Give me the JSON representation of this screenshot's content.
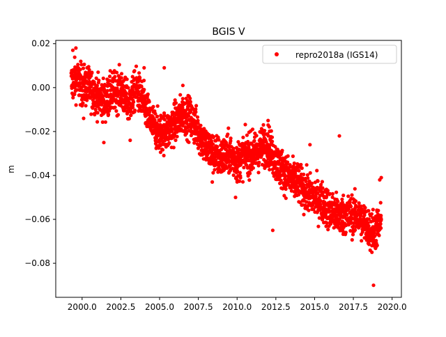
{
  "chart_data": {
    "type": "scatter",
    "title": "BGIS V",
    "xlabel": "",
    "ylabel": "m",
    "xlim": [
      1998.3,
      2020.6
    ],
    "ylim": [
      -0.0955,
      0.0215
    ],
    "x_ticks": [
      2000.0,
      2002.5,
      2005.0,
      2007.5,
      2010.0,
      2012.5,
      2015.0,
      2017.5,
      2020.0
    ],
    "x_tick_labels": [
      "2000.0",
      "2002.5",
      "2005.0",
      "2007.5",
      "2010.0",
      "2012.5",
      "2015.0",
      "2017.5",
      "2020.0"
    ],
    "y_ticks": [
      0.02,
      0.0,
      -0.02,
      -0.04,
      -0.06,
      -0.08
    ],
    "y_tick_labels": [
      "0.02",
      "0.00",
      "−0.02",
      "−0.04",
      "−0.06",
      "−0.08"
    ],
    "grid": false,
    "legend_position": "top-right",
    "series": [
      {
        "name": "repro2018a (IGS14)",
        "color": "#ff0000",
        "marker": "circle",
        "trend_knots": [
          [
            1999.3,
            0.002
          ],
          [
            1999.6,
            0.004
          ],
          [
            2000.0,
            0.001
          ],
          [
            2000.5,
            0.0
          ],
          [
            2001.0,
            -0.004
          ],
          [
            2001.5,
            -0.006
          ],
          [
            2002.0,
            -0.002
          ],
          [
            2002.5,
            -0.001
          ],
          [
            2003.0,
            -0.008
          ],
          [
            2003.5,
            0.0
          ],
          [
            2004.0,
            -0.008
          ],
          [
            2004.5,
            -0.016
          ],
          [
            2005.0,
            -0.021
          ],
          [
            2005.5,
            -0.02
          ],
          [
            2006.0,
            -0.016
          ],
          [
            2006.5,
            -0.012
          ],
          [
            2007.0,
            -0.014
          ],
          [
            2007.5,
            -0.02
          ],
          [
            2008.0,
            -0.027
          ],
          [
            2008.5,
            -0.03
          ],
          [
            2009.0,
            -0.032
          ],
          [
            2009.5,
            -0.03
          ],
          [
            2010.0,
            -0.034
          ],
          [
            2010.5,
            -0.03
          ],
          [
            2011.0,
            -0.031
          ],
          [
            2011.5,
            -0.028
          ],
          [
            2012.0,
            -0.026
          ],
          [
            2012.5,
            -0.034
          ],
          [
            2013.0,
            -0.038
          ],
          [
            2013.5,
            -0.042
          ],
          [
            2014.0,
            -0.044
          ],
          [
            2014.5,
            -0.048
          ],
          [
            2015.0,
            -0.05
          ],
          [
            2015.5,
            -0.052
          ],
          [
            2016.0,
            -0.056
          ],
          [
            2016.5,
            -0.058
          ],
          [
            2017.0,
            -0.058
          ],
          [
            2017.5,
            -0.058
          ],
          [
            2018.0,
            -0.06
          ],
          [
            2018.5,
            -0.064
          ],
          [
            2018.9,
            -0.065
          ],
          [
            2019.3,
            -0.062
          ]
        ],
        "spread": 0.005,
        "sample_points": [
          [
            1999.6,
            0.018
          ],
          [
            1999.4,
            0.017
          ],
          [
            2005.3,
            0.009
          ],
          [
            2004.0,
            0.009
          ],
          [
            2000.1,
            -0.014
          ],
          [
            2001.4,
            -0.025
          ],
          [
            2012.3,
            -0.065
          ],
          [
            2018.8,
            -0.09
          ],
          [
            2019.2,
            -0.042
          ],
          [
            2019.3,
            -0.041
          ],
          [
            2016.6,
            -0.022
          ],
          [
            2008.4,
            -0.043
          ],
          [
            2009.9,
            -0.05
          ],
          [
            2011.0,
            -0.019
          ],
          [
            2011.7,
            -0.017
          ],
          [
            2012.0,
            -0.015
          ],
          [
            2014.7,
            -0.026
          ],
          [
            2006.5,
            0.001
          ],
          [
            2003.1,
            -0.024
          ],
          [
            2018.7,
            -0.075
          ]
        ]
      }
    ]
  }
}
